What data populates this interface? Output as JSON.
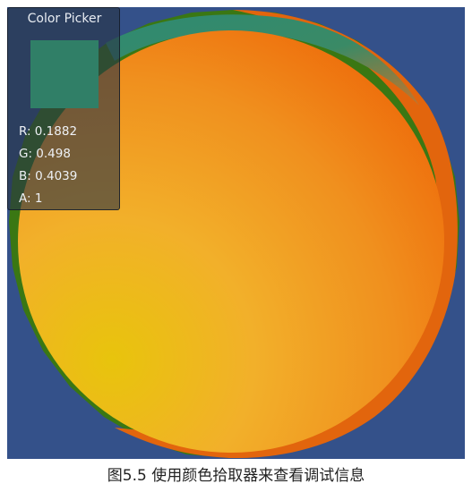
{
  "scene": {
    "background_color": "#34518a",
    "sphere_core_color": "#f0a81c",
    "sphere_edge_orange": "#e4660f",
    "sphere_rim_green": "#3c7a14",
    "sphere_teal_band": "#2e7f6a"
  },
  "color_picker": {
    "title": "Color Picker",
    "swatch_color": "#307f67",
    "r_text": "R: 0.1882",
    "g_text": "G: 0.498",
    "b_text": "B: 0.4039",
    "a_text": "A: 1"
  },
  "caption": "图5.5 使用颜色拾取器来查看调试信息"
}
